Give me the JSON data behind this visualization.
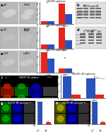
{
  "panel_a": {
    "title": "H1299 spheres",
    "bar1": {
      "vals": [
        1.0,
        8.0
      ],
      "color": "#e8251a"
    },
    "bar2": {
      "vals": [
        1.0,
        3.8
      ],
      "color": "#2a52be"
    },
    "xlabels": [
      "p21",
      "DMSO"
    ]
  },
  "panel_c": {
    "title": "H1299 spheres",
    "bar1": {
      "vals": [
        1.0,
        5.0
      ],
      "color": "#e8251a"
    },
    "bar2": {
      "vals": [
        1.0,
        2.0
      ],
      "color": "#2a52be"
    },
    "xlabels": [
      "p21",
      "DMSO\nAptg/I"
    ]
  },
  "panel_e": {
    "title": "H1299 spheres",
    "bar1": {
      "vals": [
        5.0,
        1.0
      ],
      "color": "#e8251a"
    },
    "bar2": {
      "vals": [
        3.5,
        1.0
      ],
      "color": "#2a52be"
    },
    "xlabels": [
      "si-GFP",
      "si-APE1"
    ]
  },
  "panel_i_bar": {
    "title": "H1299 3D spheres",
    "series1_vals": [
      6.0,
      5.5
    ],
    "series2_vals": [
      1.0,
      1.0
    ],
    "color1": "#2a52be",
    "color2": "#e8251a",
    "xlabels": [
      "CAM1",
      "APE1"
    ],
    "legend": [
      "siCtrl",
      "si-mitoAPE1"
    ]
  },
  "panel_g_bar": {
    "vals": [
      1.0,
      0.12
    ],
    "colors": [
      "#2a52be",
      "#e8251a"
    ]
  },
  "panel_h_bar": {
    "vals": [
      1.0,
      0.1
    ],
    "colors": [
      "#2a52be",
      "#e8251a"
    ]
  },
  "img_gray": "#b8b8b8",
  "img_dark": "#888888",
  "wb_bg": "#e0e0e0",
  "wb_band": "#444444",
  "fl_black": "#000000",
  "fl_red": "#cc2200",
  "fl_green": "#00aa00",
  "fl_blue": "#0000cc",
  "fl_gray": "#666666"
}
